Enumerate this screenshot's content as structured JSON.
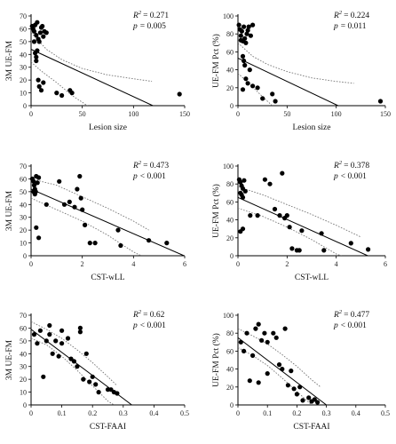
{
  "chart_data": [
    {
      "type": "scatter",
      "xlabel": "Lesion size",
      "ylabel": "3M UE-FM",
      "xlim": [
        0,
        150
      ],
      "ylim": [
        0,
        70
      ],
      "xticks": [
        0,
        50,
        100,
        150
      ],
      "yticks": [
        0,
        10,
        20,
        30,
        40,
        50,
        60,
        70
      ],
      "stats": {
        "r2_label": "R",
        "r2_exp": "2",
        "r2_value": "= 0.271",
        "p_label": "p",
        "p_value": "= 0.005"
      },
      "fit": {
        "intercept": 44,
        "slope": -0.37
      },
      "ci_upper": [
        [
          0,
          57
        ],
        [
          15,
          44
        ],
        [
          30,
          36
        ],
        [
          50,
          29
        ],
        [
          75,
          24
        ],
        [
          100,
          21
        ],
        [
          118,
          19
        ]
      ],
      "ci_lower": [
        [
          0,
          34
        ],
        [
          10,
          27
        ],
        [
          25,
          18
        ],
        [
          40,
          8
        ],
        [
          55,
          0
        ]
      ],
      "points": [
        [
          1,
          62
        ],
        [
          2,
          60
        ],
        [
          3,
          58
        ],
        [
          4,
          63
        ],
        [
          5,
          55
        ],
        [
          6,
          65
        ],
        [
          7,
          52
        ],
        [
          8,
          50
        ],
        [
          9,
          57
        ],
        [
          10,
          61
        ],
        [
          11,
          62
        ],
        [
          12,
          54
        ],
        [
          13,
          58
        ],
        [
          15,
          57
        ],
        [
          3,
          50
        ],
        [
          4,
          41
        ],
        [
          5,
          38
        ],
        [
          6,
          43
        ],
        [
          7,
          20
        ],
        [
          8,
          15
        ],
        [
          10,
          12
        ],
        [
          12,
          18
        ],
        [
          5,
          35
        ],
        [
          25,
          10
        ],
        [
          30,
          8
        ],
        [
          38,
          12
        ],
        [
          40,
          10
        ],
        [
          145,
          9
        ]
      ]
    },
    {
      "type": "scatter",
      "xlabel": "Lesion size",
      "ylabel": "UE-FM Pct (%)",
      "xlim": [
        0,
        150
      ],
      "ylim": [
        0,
        100
      ],
      "xticks": [
        0,
        50,
        100,
        150
      ],
      "yticks": [
        0,
        20,
        40,
        60,
        80,
        100
      ],
      "stats": {
        "r2_label": "R",
        "r2_exp": "2",
        "r2_value": "= 0.224",
        "p_label": "p",
        "p_value": "= 0.011"
      },
      "fit": {
        "intercept": 53,
        "slope": -0.52
      },
      "ci_upper": [
        [
          0,
          70
        ],
        [
          15,
          55
        ],
        [
          30,
          46
        ],
        [
          50,
          38
        ],
        [
          75,
          31
        ],
        [
          100,
          27
        ],
        [
          118,
          25
        ]
      ],
      "ci_lower": [
        [
          0,
          36
        ],
        [
          10,
          26
        ],
        [
          25,
          10
        ],
        [
          35,
          0
        ]
      ],
      "points": [
        [
          1,
          90
        ],
        [
          2,
          85
        ],
        [
          3,
          78
        ],
        [
          4,
          83
        ],
        [
          5,
          72
        ],
        [
          6,
          88
        ],
        [
          7,
          75
        ],
        [
          8,
          70
        ],
        [
          9,
          80
        ],
        [
          10,
          84
        ],
        [
          11,
          88
        ],
        [
          13,
          78
        ],
        [
          15,
          90
        ],
        [
          3,
          73
        ],
        [
          5,
          55
        ],
        [
          6,
          50
        ],
        [
          7,
          45
        ],
        [
          8,
          30
        ],
        [
          10,
          25
        ],
        [
          12,
          40
        ],
        [
          15,
          22
        ],
        [
          20,
          20
        ],
        [
          25,
          8
        ],
        [
          35,
          13
        ],
        [
          38,
          5
        ],
        [
          5,
          18
        ],
        [
          145,
          5
        ]
      ]
    },
    {
      "type": "scatter",
      "xlabel": "CST-wLL",
      "ylabel": "3M UE-FM",
      "xlim": [
        0,
        6
      ],
      "ylim": [
        0,
        70
      ],
      "xticks": [
        0,
        2,
        4,
        6
      ],
      "yticks": [
        0,
        10,
        20,
        30,
        40,
        50,
        60,
        70
      ],
      "stats": {
        "r2_label": "R",
        "r2_exp": "2",
        "r2_value": "= 0.473",
        "p_label": "p",
        "p_value": "< 0.001"
      },
      "fit": {
        "intercept": 52,
        "slope": -8.7
      },
      "ci_upper": [
        [
          0,
          60
        ],
        [
          1,
          55
        ],
        [
          2,
          46
        ],
        [
          3,
          37
        ],
        [
          4,
          27
        ],
        [
          4.6,
          20
        ]
      ],
      "ci_lower": [
        [
          0,
          45
        ],
        [
          1,
          36
        ],
        [
          2,
          27
        ],
        [
          3,
          16
        ],
        [
          4,
          3
        ],
        [
          4.3,
          0
        ]
      ],
      "points": [
        [
          0.05,
          60
        ],
        [
          0.1,
          58
        ],
        [
          0.12,
          55
        ],
        [
          0.15,
          52
        ],
        [
          0.18,
          50
        ],
        [
          0.2,
          62
        ],
        [
          0.25,
          57
        ],
        [
          0.3,
          61
        ],
        [
          0.1,
          50
        ],
        [
          0.15,
          48
        ],
        [
          0.2,
          22
        ],
        [
          0.3,
          14
        ],
        [
          0.6,
          40
        ],
        [
          1.1,
          58
        ],
        [
          1.3,
          40
        ],
        [
          1.5,
          42
        ],
        [
          1.7,
          38
        ],
        [
          1.8,
          52
        ],
        [
          1.9,
          62
        ],
        [
          1.95,
          45
        ],
        [
          2.0,
          36
        ],
        [
          2.1,
          24
        ],
        [
          2.3,
          10
        ],
        [
          2.5,
          10
        ],
        [
          3.4,
          20
        ],
        [
          3.5,
          8
        ],
        [
          4.6,
          12
        ],
        [
          5.3,
          10
        ]
      ]
    },
    {
      "type": "scatter",
      "xlabel": "CST-wLL",
      "ylabel": "UE-FM Pct (%)",
      "xlim": [
        0,
        6
      ],
      "ylim": [
        0,
        100
      ],
      "xticks": [
        0,
        2,
        4,
        6
      ],
      "yticks": [
        0,
        20,
        40,
        60,
        80,
        100
      ],
      "stats": {
        "r2_label": "R",
        "r2_exp": "2",
        "r2_value": "= 0.378",
        "p_label": "p",
        "p_value": "< 0.001"
      },
      "fit": {
        "intercept": 65,
        "slope": -12.3
      },
      "ci_upper": [
        [
          0,
          77
        ],
        [
          1,
          68
        ],
        [
          2,
          57
        ],
        [
          3,
          46
        ],
        [
          4,
          34
        ],
        [
          5,
          21
        ]
      ],
      "ci_lower": [
        [
          0,
          53
        ],
        [
          1,
          44
        ],
        [
          2,
          32
        ],
        [
          3,
          18
        ],
        [
          4,
          2
        ],
        [
          4.2,
          0
        ]
      ],
      "points": [
        [
          0.05,
          85
        ],
        [
          0.1,
          82
        ],
        [
          0.15,
          78
        ],
        [
          0.2,
          75
        ],
        [
          0.25,
          84
        ],
        [
          0.3,
          72
        ],
        [
          0.1,
          70
        ],
        [
          0.15,
          68
        ],
        [
          0.2,
          65
        ],
        [
          0.1,
          27
        ],
        [
          0.2,
          30
        ],
        [
          0.5,
          45
        ],
        [
          0.8,
          45
        ],
        [
          1.1,
          85
        ],
        [
          1.3,
          80
        ],
        [
          1.5,
          52
        ],
        [
          1.7,
          45
        ],
        [
          1.8,
          92
        ],
        [
          1.9,
          42
        ],
        [
          2.0,
          45
        ],
        [
          2.1,
          32
        ],
        [
          2.2,
          8
        ],
        [
          2.4,
          6
        ],
        [
          2.5,
          6
        ],
        [
          2.6,
          28
        ],
        [
          3.4,
          25
        ],
        [
          3.5,
          6
        ],
        [
          4.6,
          14
        ],
        [
          5.3,
          7
        ]
      ]
    },
    {
      "type": "scatter",
      "xlabel": "CST-FAAI",
      "ylabel": "3M UE-FM",
      "xlim": [
        0,
        0.5
      ],
      "ylim": [
        0,
        70
      ],
      "xticks": [
        0,
        0.1,
        0.2,
        0.3,
        0.4,
        0.5
      ],
      "yticks": [
        0,
        10,
        20,
        30,
        40,
        50,
        60,
        70
      ],
      "stats": {
        "r2_label": "R",
        "r2_exp": "2",
        "r2_value": "= 0.62",
        "p_label": "p",
        "p_value": "< 0.001"
      },
      "fit": {
        "intercept": 59,
        "slope": -180
      },
      "ci_upper": [
        [
          0,
          65
        ],
        [
          0.05,
          59
        ],
        [
          0.1,
          52
        ],
        [
          0.15,
          43
        ],
        [
          0.2,
          33
        ],
        [
          0.25,
          22
        ],
        [
          0.28,
          15
        ]
      ],
      "ci_lower": [
        [
          0,
          52
        ],
        [
          0.05,
          47
        ],
        [
          0.1,
          38
        ],
        [
          0.15,
          27
        ],
        [
          0.2,
          15
        ],
        [
          0.25,
          3
        ],
        [
          0.27,
          0
        ]
      ],
      "points": [
        [
          0.01,
          55
        ],
        [
          0.02,
          48
        ],
        [
          0.03,
          58
        ],
        [
          0.04,
          22
        ],
        [
          0.05,
          50
        ],
        [
          0.06,
          62
        ],
        [
          0.06,
          55
        ],
        [
          0.07,
          40
        ],
        [
          0.08,
          50
        ],
        [
          0.09,
          38
        ],
        [
          0.1,
          58
        ],
        [
          0.1,
          48
        ],
        [
          0.12,
          52
        ],
        [
          0.13,
          36
        ],
        [
          0.14,
          34
        ],
        [
          0.15,
          30
        ],
        [
          0.16,
          60
        ],
        [
          0.16,
          57
        ],
        [
          0.17,
          20
        ],
        [
          0.18,
          40
        ],
        [
          0.19,
          18
        ],
        [
          0.2,
          22
        ],
        [
          0.21,
          16
        ],
        [
          0.22,
          10
        ],
        [
          0.25,
          12
        ],
        [
          0.26,
          12
        ],
        [
          0.27,
          10
        ],
        [
          0.28,
          9
        ]
      ]
    },
    {
      "type": "scatter",
      "xlabel": "CST-FAAI",
      "ylabel": "UE-FM Pct (%)",
      "xlim": [
        0,
        0.5
      ],
      "ylim": [
        0,
        100
      ],
      "xticks": [
        0,
        0.1,
        0.2,
        0.3,
        0.4,
        0.5
      ],
      "yticks": [
        0,
        20,
        40,
        60,
        80,
        100
      ],
      "stats": {
        "r2_label": "R",
        "r2_exp": "2",
        "r2_value": "= 0.477",
        "p_label": "p",
        "p_value": "< 0.001"
      },
      "fit": {
        "intercept": 75,
        "slope": -250
      },
      "ci_upper": [
        [
          0,
          85
        ],
        [
          0.05,
          77
        ],
        [
          0.1,
          68
        ],
        [
          0.15,
          56
        ],
        [
          0.2,
          43
        ],
        [
          0.25,
          28
        ],
        [
          0.28,
          20
        ]
      ],
      "ci_lower": [
        [
          0,
          64
        ],
        [
          0.05,
          55
        ],
        [
          0.1,
          44
        ],
        [
          0.15,
          30
        ],
        [
          0.2,
          15
        ],
        [
          0.25,
          0
        ]
      ],
      "points": [
        [
          0.01,
          70
        ],
        [
          0.02,
          60
        ],
        [
          0.03,
          80
        ],
        [
          0.04,
          27
        ],
        [
          0.05,
          55
        ],
        [
          0.06,
          85
        ],
        [
          0.07,
          90
        ],
        [
          0.07,
          25
        ],
        [
          0.08,
          72
        ],
        [
          0.09,
          80
        ],
        [
          0.1,
          70
        ],
        [
          0.1,
          35
        ],
        [
          0.12,
          80
        ],
        [
          0.13,
          75
        ],
        [
          0.14,
          45
        ],
        [
          0.15,
          40
        ],
        [
          0.16,
          85
        ],
        [
          0.17,
          22
        ],
        [
          0.18,
          38
        ],
        [
          0.19,
          18
        ],
        [
          0.2,
          12
        ],
        [
          0.21,
          20
        ],
        [
          0.22,
          5
        ],
        [
          0.24,
          8
        ],
        [
          0.25,
          4
        ],
        [
          0.26,
          6
        ],
        [
          0.27,
          3
        ]
      ]
    }
  ]
}
